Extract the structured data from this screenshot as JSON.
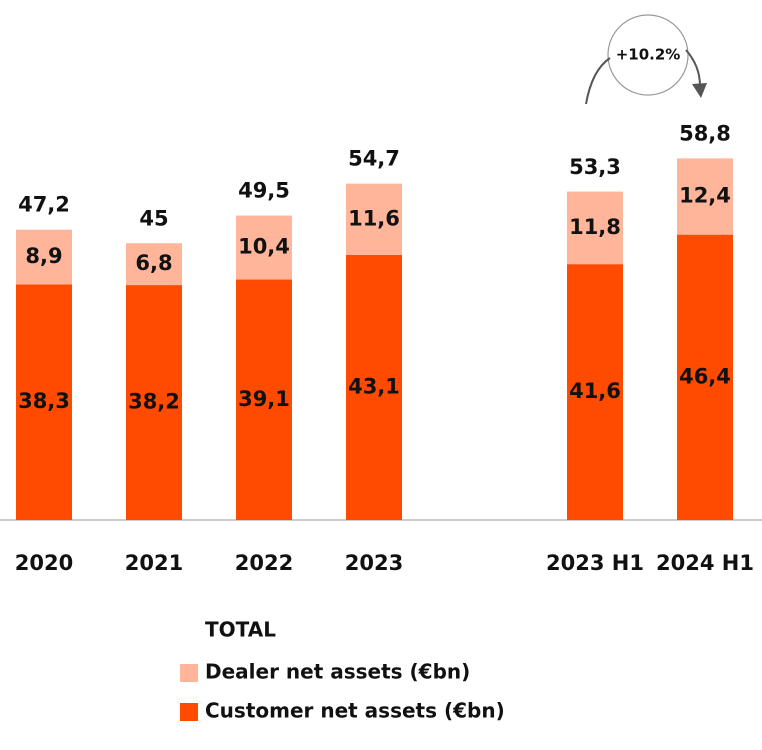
{
  "chart_data": {
    "type": "stacked_bar",
    "categories": [
      "2020",
      "2021",
      "2022",
      "2023",
      "2023 H1",
      "2024 H1"
    ],
    "series": [
      {
        "name": "Customer net assets (€bn)",
        "color": "#ff4b00",
        "values": [
          38.3,
          38.2,
          39.1,
          43.1,
          41.6,
          46.4
        ],
        "value_labels": [
          "38,3",
          "38,2",
          "39,1",
          "43,1",
          "41,6",
          "46,4"
        ]
      },
      {
        "name": "Dealer net assets (€bn)",
        "color": "#ffb599",
        "values": [
          8.9,
          6.8,
          10.4,
          11.6,
          11.8,
          12.4
        ],
        "value_labels": [
          "8,9",
          "6,8",
          "10,4",
          "11,6",
          "11,8",
          "12,4"
        ]
      }
    ],
    "totals": [
      47.2,
      45,
      49.5,
      54.7,
      53.3,
      58.8
    ],
    "total_labels": [
      "47,2",
      "45",
      "49,5",
      "54,7",
      "53,3",
      "58,8"
    ],
    "legend_title": "TOTAL",
    "annotation": "+10.2%"
  }
}
